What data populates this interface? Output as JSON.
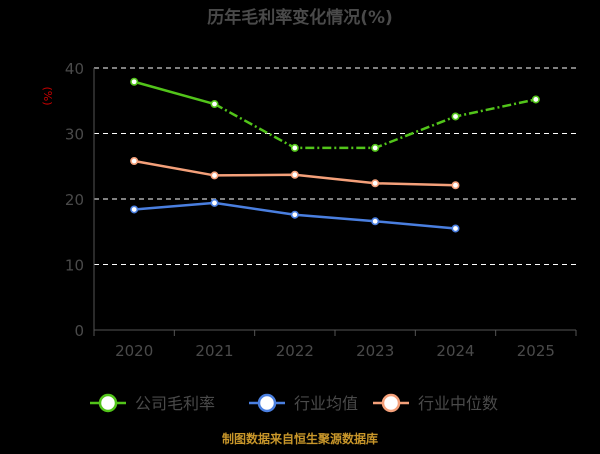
{
  "chart_data": {
    "type": "line",
    "title": "历年毛利率变化情况(%)",
    "ylabel": "(%)",
    "xlabel": "",
    "ylim": [
      0,
      40
    ],
    "yticks": [
      0,
      10,
      20,
      30,
      40
    ],
    "categories": [
      "2020",
      "2021",
      "2022",
      "2023",
      "2024",
      "2025"
    ],
    "grid": true,
    "legend_position": "bottom",
    "series": [
      {
        "name": "公司毛利率",
        "color": "#52c41a",
        "values": [
          37.9,
          34.5,
          27.8,
          27.8,
          32.6,
          35.2
        ],
        "projected_from_index": 1
      },
      {
        "name": "行业均值",
        "color": "#4a7fe0",
        "values": [
          18.4,
          19.4,
          17.6,
          16.6,
          15.5,
          null
        ]
      },
      {
        "name": "行业中位数",
        "color": "#f4a07a",
        "values": [
          25.8,
          23.6,
          23.7,
          22.4,
          22.1,
          null
        ]
      }
    ],
    "source": "制图数据来自恒生聚源数据库"
  }
}
